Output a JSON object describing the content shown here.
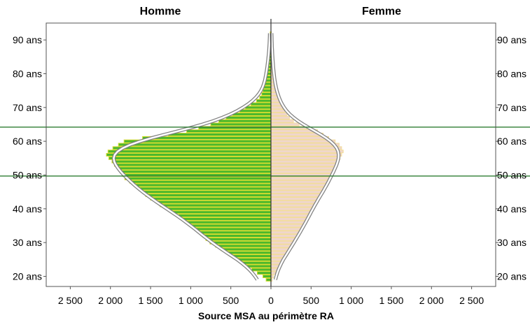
{
  "chart_data": {
    "type": "bar",
    "orientation": "horizontal-pyramid",
    "title_left": "Homme",
    "title_right": "Femme",
    "xlabel": "Source MSA au périmètre RA",
    "x_ticks": [
      "2 500",
      "2 000",
      "1 500",
      "1 000",
      "500",
      "0",
      "500",
      "1 000",
      "1 500",
      "2 000",
      "2 500"
    ],
    "y_ticks": [
      "20 ans",
      "30 ans",
      "40 ans",
      "50 ans",
      "60 ans",
      "70 ans",
      "80 ans",
      "90 ans"
    ],
    "xlim": [
      -2800,
      2800
    ],
    "ylim": [
      17,
      95
    ],
    "reference_lines_age": [
      49.7,
      64.2
    ],
    "grid": false,
    "colors": {
      "homme_bar": "#4cb82c",
      "homme_bar_edge": "#d8dc30",
      "femme_bar": "#efd6cc",
      "femme_bar_edge": "#f2dd9a",
      "curve_fill": "#ffffff",
      "curve_outline": "#808080",
      "reference_line": "#2e7d32",
      "axis": "#555555"
    },
    "series": [
      {
        "name": "Homme",
        "ages": [
          19,
          20,
          21,
          22,
          23,
          24,
          25,
          26,
          27,
          28,
          29,
          30,
          31,
          32,
          33,
          34,
          35,
          36,
          37,
          38,
          39,
          40,
          41,
          42,
          43,
          44,
          45,
          46,
          47,
          48,
          49,
          50,
          51,
          52,
          53,
          54,
          55,
          56,
          57,
          58,
          59,
          60,
          61,
          62,
          63,
          64,
          65,
          66,
          67,
          68,
          69,
          70,
          71,
          72,
          73,
          74,
          75,
          76,
          77,
          78,
          79,
          80,
          81,
          82,
          83,
          84,
          85,
          86,
          87,
          88,
          89,
          90,
          91,
          92
        ],
        "values": [
          60,
          100,
          170,
          240,
          300,
          360,
          420,
          470,
          540,
          620,
          690,
          760,
          810,
          850,
          880,
          930,
          1000,
          1050,
          1100,
          1150,
          1220,
          1300,
          1380,
          1430,
          1500,
          1560,
          1600,
          1650,
          1700,
          1760,
          1820,
          1850,
          1870,
          1900,
          1950,
          1980,
          2020,
          2050,
          2030,
          1970,
          1900,
          1830,
          1600,
          1280,
          1050,
          900,
          750,
          650,
          560,
          480,
          390,
          320,
          250,
          180,
          140,
          115,
          100,
          90,
          82,
          75,
          65,
          58,
          50,
          45,
          40,
          35,
          30,
          25,
          22,
          20,
          18,
          15,
          12,
          10
        ]
      },
      {
        "name": "Femme",
        "ages": [
          19,
          20,
          21,
          22,
          23,
          24,
          25,
          26,
          27,
          28,
          29,
          30,
          31,
          32,
          33,
          34,
          35,
          36,
          37,
          38,
          39,
          40,
          41,
          42,
          43,
          44,
          45,
          46,
          47,
          48,
          49,
          50,
          51,
          52,
          53,
          54,
          55,
          56,
          57,
          58,
          59,
          60,
          61,
          62,
          63,
          64,
          65,
          66,
          67,
          68,
          69,
          70,
          71,
          72,
          73,
          74,
          75,
          76,
          77,
          78,
          79,
          80,
          81,
          82,
          83,
          84,
          85,
          86,
          87,
          88,
          89,
          90,
          91,
          92
        ],
        "values": [
          15,
          30,
          55,
          80,
          100,
          130,
          150,
          180,
          210,
          230,
          260,
          290,
          320,
          340,
          360,
          380,
          410,
          440,
          460,
          480,
          500,
          520,
          540,
          560,
          590,
          620,
          650,
          680,
          700,
          720,
          740,
          760,
          780,
          800,
          820,
          840,
          860,
          880,
          900,
          880,
          850,
          800,
          720,
          650,
          580,
          450,
          350,
          280,
          230,
          200,
          170,
          150,
          130,
          110,
          90,
          75,
          65,
          55,
          50,
          45,
          40,
          35,
          30,
          28,
          25,
          22,
          20,
          18,
          15,
          12,
          10,
          8,
          6,
          5
        ]
      }
    ]
  }
}
